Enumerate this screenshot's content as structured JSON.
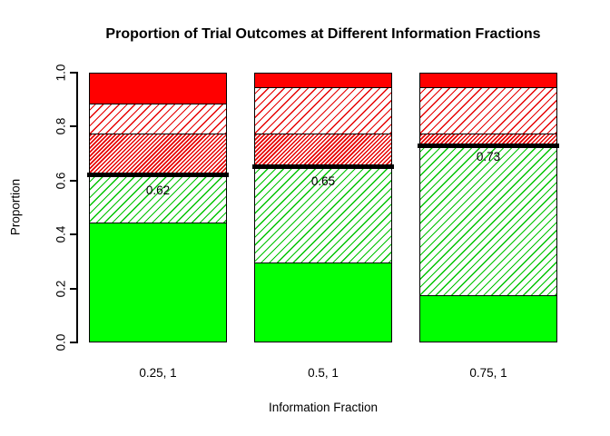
{
  "title": "Proportion of Trial Outcomes at Different Information Fractions",
  "chart_data": {
    "type": "bar",
    "stacked": true,
    "title": "Proportion of Trial Outcomes at Different Information Fractions",
    "xlabel": "Information Fraction",
    "ylabel": "Proportion",
    "ylim": [
      0,
      1
    ],
    "grid": false,
    "legend": "none",
    "yticks": [
      "0.0",
      "0.2",
      "0.4",
      "0.6",
      "0.8",
      "1.0"
    ],
    "categories": [
      "0.25, 1",
      "0.5, 1",
      "0.75, 1"
    ],
    "series": [
      {
        "name": "solid-green",
        "style": "solid",
        "color": "#00FF00",
        "values": [
          0.445,
          0.295,
          0.175
        ]
      },
      {
        "name": "green-hatch",
        "style": "hatch",
        "color": "#00C300",
        "values": [
          0.175,
          0.355,
          0.555
        ]
      },
      {
        "name": "red-dense-hatch",
        "style": "hatch-dense",
        "color": "#E60000",
        "values": [
          0.155,
          0.125,
          0.045
        ]
      },
      {
        "name": "red-hatch",
        "style": "hatch",
        "color": "#E60000",
        "values": [
          0.11,
          0.17,
          0.17
        ]
      },
      {
        "name": "solid-red",
        "style": "solid",
        "color": "#FF0000",
        "values": [
          0.115,
          0.055,
          0.055
        ]
      }
    ],
    "threshold_lines": {
      "color": "#000000",
      "values": [
        0.62,
        0.65,
        0.73
      ],
      "labels": [
        "0.62",
        "0.65",
        "0.73"
      ]
    }
  }
}
